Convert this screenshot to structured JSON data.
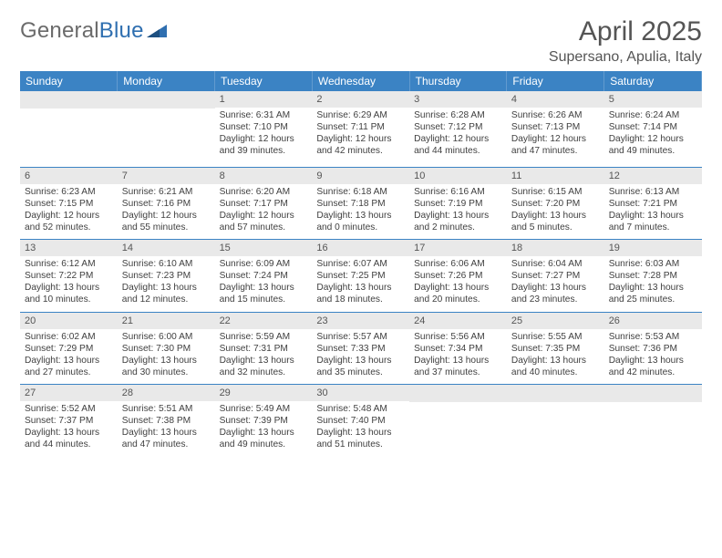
{
  "brand": {
    "general": "General",
    "blue": "Blue"
  },
  "title": "April 2025",
  "location": "Supersano, Apulia, Italy",
  "colors": {
    "header_bg": "#3b83c4",
    "header_text": "#ffffff",
    "daynum_bg": "#e9e9e9",
    "rule": "#3b83c4",
    "logo_gray": "#6b6b6b",
    "logo_blue": "#2f6fb0",
    "body_text": "#404040"
  },
  "typography": {
    "title_fontsize": 30,
    "location_fontsize": 16,
    "dayhead_fontsize": 12,
    "cell_fontsize": 10.2
  },
  "dayNames": [
    "Sunday",
    "Monday",
    "Tuesday",
    "Wednesday",
    "Thursday",
    "Friday",
    "Saturday"
  ],
  "weeks": [
    [
      {
        "blank": true
      },
      {
        "blank": true
      },
      {
        "n": "1",
        "sr": "Sunrise: 6:31 AM",
        "ss": "Sunset: 7:10 PM",
        "d1": "Daylight: 12 hours",
        "d2": "and 39 minutes."
      },
      {
        "n": "2",
        "sr": "Sunrise: 6:29 AM",
        "ss": "Sunset: 7:11 PM",
        "d1": "Daylight: 12 hours",
        "d2": "and 42 minutes."
      },
      {
        "n": "3",
        "sr": "Sunrise: 6:28 AM",
        "ss": "Sunset: 7:12 PM",
        "d1": "Daylight: 12 hours",
        "d2": "and 44 minutes."
      },
      {
        "n": "4",
        "sr": "Sunrise: 6:26 AM",
        "ss": "Sunset: 7:13 PM",
        "d1": "Daylight: 12 hours",
        "d2": "and 47 minutes."
      },
      {
        "n": "5",
        "sr": "Sunrise: 6:24 AM",
        "ss": "Sunset: 7:14 PM",
        "d1": "Daylight: 12 hours",
        "d2": "and 49 minutes."
      }
    ],
    [
      {
        "n": "6",
        "sr": "Sunrise: 6:23 AM",
        "ss": "Sunset: 7:15 PM",
        "d1": "Daylight: 12 hours",
        "d2": "and 52 minutes."
      },
      {
        "n": "7",
        "sr": "Sunrise: 6:21 AM",
        "ss": "Sunset: 7:16 PM",
        "d1": "Daylight: 12 hours",
        "d2": "and 55 minutes."
      },
      {
        "n": "8",
        "sr": "Sunrise: 6:20 AM",
        "ss": "Sunset: 7:17 PM",
        "d1": "Daylight: 12 hours",
        "d2": "and 57 minutes."
      },
      {
        "n": "9",
        "sr": "Sunrise: 6:18 AM",
        "ss": "Sunset: 7:18 PM",
        "d1": "Daylight: 13 hours",
        "d2": "and 0 minutes."
      },
      {
        "n": "10",
        "sr": "Sunrise: 6:16 AM",
        "ss": "Sunset: 7:19 PM",
        "d1": "Daylight: 13 hours",
        "d2": "and 2 minutes."
      },
      {
        "n": "11",
        "sr": "Sunrise: 6:15 AM",
        "ss": "Sunset: 7:20 PM",
        "d1": "Daylight: 13 hours",
        "d2": "and 5 minutes."
      },
      {
        "n": "12",
        "sr": "Sunrise: 6:13 AM",
        "ss": "Sunset: 7:21 PM",
        "d1": "Daylight: 13 hours",
        "d2": "and 7 minutes."
      }
    ],
    [
      {
        "n": "13",
        "sr": "Sunrise: 6:12 AM",
        "ss": "Sunset: 7:22 PM",
        "d1": "Daylight: 13 hours",
        "d2": "and 10 minutes."
      },
      {
        "n": "14",
        "sr": "Sunrise: 6:10 AM",
        "ss": "Sunset: 7:23 PM",
        "d1": "Daylight: 13 hours",
        "d2": "and 12 minutes."
      },
      {
        "n": "15",
        "sr": "Sunrise: 6:09 AM",
        "ss": "Sunset: 7:24 PM",
        "d1": "Daylight: 13 hours",
        "d2": "and 15 minutes."
      },
      {
        "n": "16",
        "sr": "Sunrise: 6:07 AM",
        "ss": "Sunset: 7:25 PM",
        "d1": "Daylight: 13 hours",
        "d2": "and 18 minutes."
      },
      {
        "n": "17",
        "sr": "Sunrise: 6:06 AM",
        "ss": "Sunset: 7:26 PM",
        "d1": "Daylight: 13 hours",
        "d2": "and 20 minutes."
      },
      {
        "n": "18",
        "sr": "Sunrise: 6:04 AM",
        "ss": "Sunset: 7:27 PM",
        "d1": "Daylight: 13 hours",
        "d2": "and 23 minutes."
      },
      {
        "n": "19",
        "sr": "Sunrise: 6:03 AM",
        "ss": "Sunset: 7:28 PM",
        "d1": "Daylight: 13 hours",
        "d2": "and 25 minutes."
      }
    ],
    [
      {
        "n": "20",
        "sr": "Sunrise: 6:02 AM",
        "ss": "Sunset: 7:29 PM",
        "d1": "Daylight: 13 hours",
        "d2": "and 27 minutes."
      },
      {
        "n": "21",
        "sr": "Sunrise: 6:00 AM",
        "ss": "Sunset: 7:30 PM",
        "d1": "Daylight: 13 hours",
        "d2": "and 30 minutes."
      },
      {
        "n": "22",
        "sr": "Sunrise: 5:59 AM",
        "ss": "Sunset: 7:31 PM",
        "d1": "Daylight: 13 hours",
        "d2": "and 32 minutes."
      },
      {
        "n": "23",
        "sr": "Sunrise: 5:57 AM",
        "ss": "Sunset: 7:33 PM",
        "d1": "Daylight: 13 hours",
        "d2": "and 35 minutes."
      },
      {
        "n": "24",
        "sr": "Sunrise: 5:56 AM",
        "ss": "Sunset: 7:34 PM",
        "d1": "Daylight: 13 hours",
        "d2": "and 37 minutes."
      },
      {
        "n": "25",
        "sr": "Sunrise: 5:55 AM",
        "ss": "Sunset: 7:35 PM",
        "d1": "Daylight: 13 hours",
        "d2": "and 40 minutes."
      },
      {
        "n": "26",
        "sr": "Sunrise: 5:53 AM",
        "ss": "Sunset: 7:36 PM",
        "d1": "Daylight: 13 hours",
        "d2": "and 42 minutes."
      }
    ],
    [
      {
        "n": "27",
        "sr": "Sunrise: 5:52 AM",
        "ss": "Sunset: 7:37 PM",
        "d1": "Daylight: 13 hours",
        "d2": "and 44 minutes."
      },
      {
        "n": "28",
        "sr": "Sunrise: 5:51 AM",
        "ss": "Sunset: 7:38 PM",
        "d1": "Daylight: 13 hours",
        "d2": "and 47 minutes."
      },
      {
        "n": "29",
        "sr": "Sunrise: 5:49 AM",
        "ss": "Sunset: 7:39 PM",
        "d1": "Daylight: 13 hours",
        "d2": "and 49 minutes."
      },
      {
        "n": "30",
        "sr": "Sunrise: 5:48 AM",
        "ss": "Sunset: 7:40 PM",
        "d1": "Daylight: 13 hours",
        "d2": "and 51 minutes."
      },
      {
        "blank": true
      },
      {
        "blank": true
      },
      {
        "blank": true
      }
    ]
  ]
}
